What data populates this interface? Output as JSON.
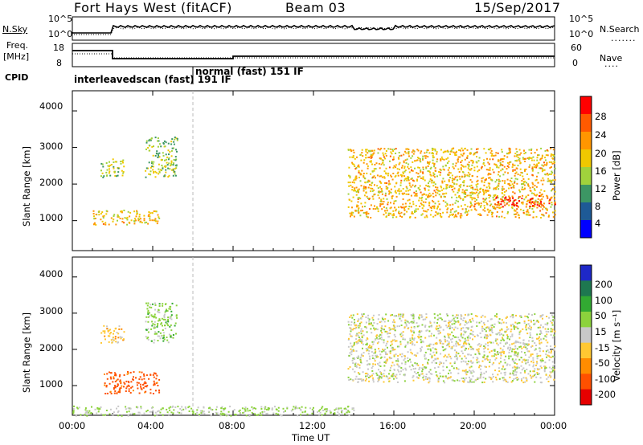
{
  "header": {
    "title": "Fort Hays West (fitACF)",
    "beam": "Beam 03",
    "date": "15/Sep/2017"
  },
  "summary": {
    "nsky_label": "N.Sky",
    "nsearch_label": "N.Search",
    "freq_label_top": "Freq.",
    "freq_label_units": "[MHz]",
    "nave_label": "Nave",
    "cpid_label": "CPID",
    "noise_ticks_left": [
      "10^5",
      "10^0"
    ],
    "noise_ticks_right": [
      "10^5",
      "10^0"
    ],
    "freq_ticks": [
      "18",
      "8"
    ],
    "nave_ticks": [
      "60",
      "0"
    ],
    "cpid_mode1": "interleavedscan (fast) 191 IF",
    "cpid_mode2": "normal (fast) 151 IF"
  },
  "axes": {
    "ylabel": "Slant Range [km]",
    "yticks": [
      "4000",
      "3000",
      "2000",
      "1000"
    ],
    "xticks": [
      "00:00",
      "04:00",
      "08:00",
      "12:00",
      "16:00",
      "20:00",
      "00:00"
    ],
    "xlabel": "Time UT"
  },
  "power_scale": {
    "label": "Power [dB]",
    "ticks": [
      "28",
      "24",
      "20",
      "16",
      "12",
      "8",
      "4"
    ],
    "colors": [
      "#ff0000",
      "#ff5a00",
      "#ff9600",
      "#f0c800",
      "#a0d23c",
      "#3c9664",
      "#1e5a96",
      "#0000ff"
    ]
  },
  "velocity_scale": {
    "label": "Velocity [m s⁻¹]",
    "ticks": [
      "200",
      "100",
      "50",
      "15",
      "-15",
      "-50",
      "-100",
      "-200"
    ],
    "colors": [
      "#1e28c8",
      "#1e7850",
      "#32aa32",
      "#8cd23c",
      "#c8c8c8",
      "#ffc832",
      "#ff8c00",
      "#ff5000",
      "#e60000"
    ]
  },
  "chart_data": [
    {
      "type": "heatmap",
      "panel": "power",
      "x_range_hours": [
        0,
        24
      ],
      "y_range_km": [
        180,
        4550
      ],
      "value_units": "dB",
      "clim": [
        0,
        30
      ],
      "echo_regions": [
        {
          "t": [
            1.4,
            2.6
          ],
          "range": [
            2200,
            2700
          ],
          "value": 14
        },
        {
          "t": [
            3.6,
            5.2
          ],
          "range": [
            2200,
            3300
          ],
          "value": 13
        },
        {
          "t": [
            1.0,
            4.3
          ],
          "range": [
            900,
            1300
          ],
          "value": 18
        },
        {
          "t": [
            13.7,
            24.0
          ],
          "range": [
            1100,
            3000
          ],
          "value": 18
        },
        {
          "t": [
            21.0,
            24.0
          ],
          "range": [
            1400,
            1700
          ],
          "value": 26
        }
      ]
    },
    {
      "type": "heatmap",
      "panel": "velocity",
      "x_range_hours": [
        0,
        24
      ],
      "y_range_km": [
        180,
        4550
      ],
      "value_units": "m s-1",
      "clim": [
        -250,
        250
      ],
      "echo_regions": [
        {
          "t": [
            1.4,
            2.6
          ],
          "range": [
            2200,
            2700
          ],
          "value": -30
        },
        {
          "t": [
            3.6,
            5.2
          ],
          "range": [
            2200,
            3300
          ],
          "value": 30
        },
        {
          "t": [
            1.5,
            4.3
          ],
          "range": [
            800,
            1400
          ],
          "value": -120
        },
        {
          "t": [
            13.7,
            24.0
          ],
          "range": [
            1100,
            3000
          ],
          "value": 0
        },
        {
          "t": [
            0.0,
            14.0
          ],
          "range": [
            180,
            450
          ],
          "value": 20
        }
      ]
    }
  ]
}
